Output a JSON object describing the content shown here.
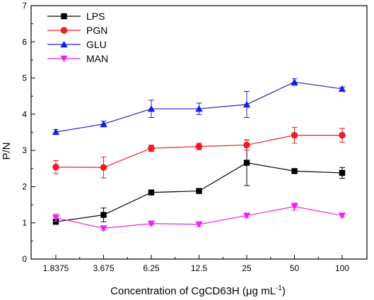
{
  "chart_data": {
    "type": "line",
    "categories": [
      "1.8375",
      "3.675",
      "6.25",
      "12.5",
      "25",
      "50",
      "100"
    ],
    "xlabel": {
      "main": "Concentration of CgCD63H (μg mL",
      "sup": "-1",
      "tail": ")"
    },
    "ylabel": "P/N",
    "ylim": [
      0,
      7
    ],
    "yticks": [
      "0",
      "1",
      "2",
      "3",
      "4",
      "5",
      "6",
      "7"
    ],
    "grid": false,
    "legend_position": "top-left",
    "series": [
      {
        "name": "LPS",
        "color": "#000000",
        "marker": "square",
        "values": [
          1.03,
          1.22,
          1.84,
          1.88,
          2.66,
          2.43,
          2.38
        ],
        "errors": [
          0.03,
          0.19,
          0.03,
          0.04,
          0.63,
          0.05,
          0.15
        ]
      },
      {
        "name": "PGN",
        "color": "#ee1c25",
        "marker": "circle",
        "values": [
          2.54,
          2.53,
          3.06,
          3.11,
          3.15,
          3.42,
          3.42
        ],
        "errors": [
          0.18,
          0.29,
          0.09,
          0.09,
          0.14,
          0.22,
          0.19
        ]
      },
      {
        "name": "GLU",
        "color": "#1c1cde",
        "marker": "triangle-up",
        "values": [
          3.51,
          3.73,
          4.15,
          4.15,
          4.27,
          4.89,
          4.7
        ],
        "errors": [
          0.07,
          0.08,
          0.24,
          0.16,
          0.36,
          0.09,
          0.05
        ]
      },
      {
        "name": "MAN",
        "color": "#ee22ee",
        "marker": "triangle-down",
        "values": [
          1.14,
          0.85,
          0.98,
          0.96,
          1.2,
          1.45,
          1.2
        ],
        "errors": [
          0.1,
          0.05,
          0.04,
          0.06,
          0.05,
          0.1,
          0.04
        ]
      }
    ]
  }
}
